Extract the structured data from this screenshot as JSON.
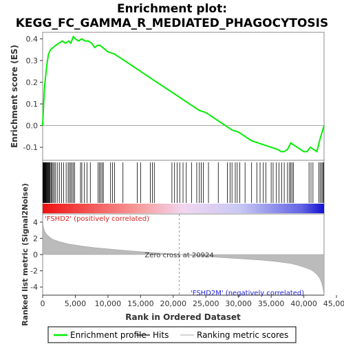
{
  "chart_data": {
    "type": "line",
    "title_line1": "Enrichment plot:",
    "title_line2": "KEGG_FC_GAMMA_R_MEDIATED_PHAGOCYTOSIS",
    "es_panel": {
      "ylabel": "Enrichment score (ES)",
      "ylim": [
        -0.16,
        0.43
      ],
      "yticks": [
        -0.1,
        0.0,
        0.1,
        0.2,
        0.3,
        0.4
      ],
      "ytick_labels": [
        "-0.1",
        "0.0",
        "0.1",
        "0.2",
        "0.3",
        "0.4"
      ],
      "series": [
        {
          "name": "Enrichment profile",
          "color": "#00ee00",
          "x": [
            0,
            150,
            300,
            500,
            700,
            900,
            1200,
            1600,
            2000,
            2500,
            3000,
            3500,
            4000,
            4300,
            4700,
            5000,
            5500,
            6000,
            6500,
            7000,
            7500,
            8000,
            8400,
            8800,
            9200,
            9600,
            10000,
            11000,
            12000,
            13000,
            14000,
            15000,
            16000,
            17000,
            18000,
            19000,
            20000,
            21000,
            22000,
            23000,
            24000,
            25000,
            26000,
            27000,
            28000,
            29000,
            30000,
            31000,
            32000,
            33000,
            34000,
            35000,
            36000,
            36500,
            37000,
            37500,
            38000,
            38500,
            39000,
            39500,
            40000,
            40500,
            41000,
            41500,
            42000,
            42500,
            42800,
            43100
          ],
          "y": [
            0.0,
            0.1,
            0.18,
            0.24,
            0.29,
            0.33,
            0.35,
            0.36,
            0.37,
            0.38,
            0.39,
            0.38,
            0.39,
            0.38,
            0.41,
            0.4,
            0.39,
            0.4,
            0.39,
            0.39,
            0.38,
            0.36,
            0.37,
            0.37,
            0.36,
            0.35,
            0.34,
            0.33,
            0.31,
            0.29,
            0.27,
            0.25,
            0.23,
            0.21,
            0.19,
            0.17,
            0.15,
            0.13,
            0.11,
            0.09,
            0.07,
            0.06,
            0.04,
            0.02,
            0.0,
            -0.02,
            -0.03,
            -0.05,
            -0.07,
            -0.08,
            -0.09,
            -0.1,
            -0.11,
            -0.12,
            -0.12,
            -0.11,
            -0.08,
            -0.09,
            -0.1,
            -0.11,
            -0.12,
            -0.12,
            -0.1,
            -0.11,
            -0.12,
            -0.06,
            -0.03,
            0.0
          ]
        }
      ]
    },
    "hits_panel": {
      "hit_positions": [
        60,
        120,
        180,
        240,
        310,
        380,
        450,
        520,
        600,
        680,
        760,
        850,
        950,
        1050,
        1150,
        1300,
        1450,
        1600,
        1800,
        2000,
        2300,
        2600,
        2900,
        3200,
        3600,
        3900,
        4100,
        4300,
        4500,
        4700,
        4900,
        5800,
        6000,
        6400,
        6800,
        7300,
        8500,
        8700,
        8900,
        9100,
        9300,
        10400,
        10700,
        11000,
        12300,
        14500,
        15000,
        16500,
        16800,
        17100,
        19800,
        20200,
        20600,
        21000,
        21500,
        22000,
        22800,
        23600,
        24000,
        24300,
        24600,
        25400,
        26900,
        28300,
        28700,
        29000,
        29500,
        29800,
        30200,
        31000,
        32000,
        32800,
        33300,
        33800,
        34200,
        35000,
        35300,
        35800,
        36200,
        36600,
        37000,
        37500,
        37800,
        38000,
        38200,
        38400,
        40800,
        41100,
        41400,
        42300,
        42500,
        42700,
        42900,
        43000
      ]
    },
    "rank_panel": {
      "ylabel": "Ranked list metric (Signal2Noise)",
      "ylim": [
        -5.0,
        5.0
      ],
      "yticks": [
        -4,
        -2,
        0,
        2,
        4
      ],
      "ytick_labels": [
        "-4",
        "-2",
        "0",
        "2",
        "4"
      ],
      "profile_x": [
        0,
        100,
        300,
        600,
        1000,
        1500,
        2500,
        4000,
        6000,
        8000,
        10000,
        12000,
        14000,
        16000,
        18000,
        20000,
        20924,
        22000,
        24000,
        26000,
        28000,
        30000,
        32000,
        34000,
        36000,
        38000,
        39000,
        40000,
        41000,
        41500,
        42000,
        42400,
        42700,
        42900,
        43000,
        43100
      ],
      "profile_y": [
        4.3,
        3.5,
        2.9,
        2.5,
        2.2,
        1.9,
        1.6,
        1.3,
        1.05,
        0.85,
        0.7,
        0.55,
        0.42,
        0.3,
        0.18,
        0.06,
        0.0,
        -0.08,
        -0.2,
        -0.3,
        -0.4,
        -0.5,
        -0.6,
        -0.72,
        -0.88,
        -1.1,
        -1.3,
        -1.55,
        -1.85,
        -2.1,
        -2.45,
        -2.9,
        -3.4,
        -4.0,
        -4.5,
        -4.9
      ],
      "zero_cross_label": "Zero cross at 20924",
      "zero_cross": 20924,
      "pos_label": "'FSHD2' (positively correlated)",
      "neg_label": "'FSHD2M' (negatively correlated)",
      "pos_color": "#dd2222",
      "neg_color": "#2222dd"
    },
    "xaxis": {
      "xlabel": "Rank in Ordered Dataset",
      "xlim": [
        0,
        43100
      ],
      "xticks": [
        0,
        5000,
        10000,
        15000,
        20000,
        25000,
        30000,
        35000,
        40000,
        45000
      ],
      "xtick_labels": [
        "0",
        "5,000",
        "10,000",
        "15,000",
        "20,000",
        "25,000",
        "30,000",
        "35,000",
        "40,000",
        "45,000"
      ]
    },
    "legend": {
      "placement": "bottom",
      "items": [
        {
          "label": "Enrichment profile",
          "color": "#00ee00",
          "style": "line"
        },
        {
          "label": "Hits",
          "color": "#000000",
          "style": "line"
        },
        {
          "label": "Ranking metric scores",
          "color": "#bbbbbb",
          "style": "line"
        }
      ]
    }
  }
}
